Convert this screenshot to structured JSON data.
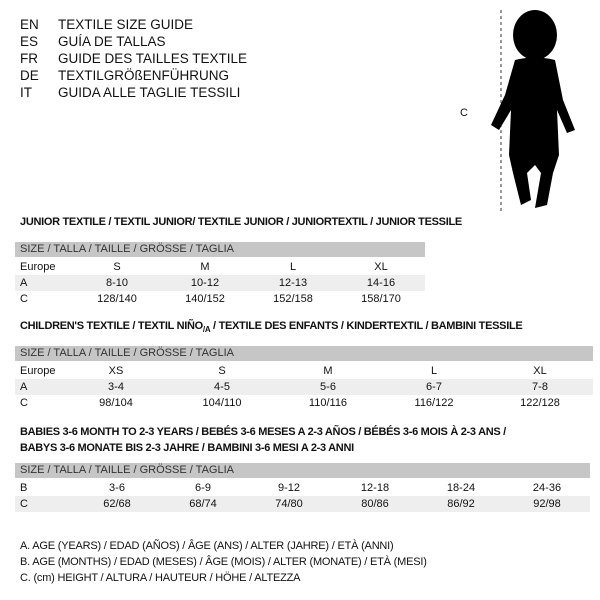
{
  "languages": [
    {
      "code": "EN",
      "text": "TEXTILE SIZE GUIDE"
    },
    {
      "code": "ES",
      "text": "GUÍA DE TALLAS"
    },
    {
      "code": "FR",
      "text": "GUIDE DES TAILLES TEXTILE"
    },
    {
      "code": "DE",
      "text": "TEXTILGRÖßENFÜHRUNG"
    },
    {
      "code": "IT",
      "text": "GUIDA ALLE TAGLIE TESSILI"
    }
  ],
  "figure": {
    "label": "C",
    "icon": "baby-silhouette"
  },
  "junior": {
    "title": "JUNIOR TEXTILE / TEXTIL JUNIOR/ TEXTILE JUNIOR / JUNIORTEXTIL / JUNIOR TESSILE",
    "header": "SIZE / TALLA / TAILLE / GRÖSSE / TAGLIA",
    "rows": [
      [
        "Europe",
        "S",
        "M",
        "L",
        "XL"
      ],
      [
        "A",
        "8-10",
        "10-12",
        "12-13",
        "14-16"
      ],
      [
        "C",
        "128/140",
        "140/152",
        "152/158",
        "158/170"
      ]
    ]
  },
  "children": {
    "title": "CHILDREN'S TEXTILE / TEXTIL NIÑO/A / TEXTILE DES ENFANTS / KINDERTEXTIL / BAMBINI TESSILE",
    "header": "SIZE / TALLA / TAILLE / GRÖSSE / TAGLIA",
    "rows": [
      [
        "Europe",
        "XS",
        "S",
        "M",
        "L",
        "XL"
      ],
      [
        "A",
        "3-4",
        "4-5",
        "5-6",
        "6-7",
        "7-8"
      ],
      [
        "C",
        "98/104",
        "104/110",
        "110/116",
        "116/122",
        "122/128"
      ]
    ]
  },
  "babies": {
    "title1": "BABIES 3-6 MONTH TO 2-3 YEARS / BEBÉS 3-6 MESES A 2-3 AÑOS / BÉBÉS 3-6 MOIS À 2-3 ANS /",
    "title2": "BABYS 3-6 MONATE BIS 2-3 JAHRE / BAMBINI 3-6 MESI A 2-3 ANNI",
    "header": "SIZE / TALLA / TAILLE / GRÖSSE / TAGLIA",
    "rows": [
      [
        "B",
        "3-6",
        "6-9",
        "9-12",
        "12-18",
        "18-24",
        "24-36"
      ],
      [
        "C",
        "62/68",
        "68/74",
        "74/80",
        "80/86",
        "86/92",
        "92/98"
      ]
    ]
  },
  "legend": [
    "A. AGE (YEARS) / EDAD (AÑOS) / ÂGE (ANS) / ALTER (JAHRE) / ETÀ (ANNI)",
    "B. AGE (MONTHS) / EDAD (MESES) / ÂGE (MOIS) / ALTER (MONATE) / ETÀ (MESI)",
    "C. (cm) HEIGHT / ALTURA / HAUTEUR / HÖHE / ALTEZZA"
  ]
}
